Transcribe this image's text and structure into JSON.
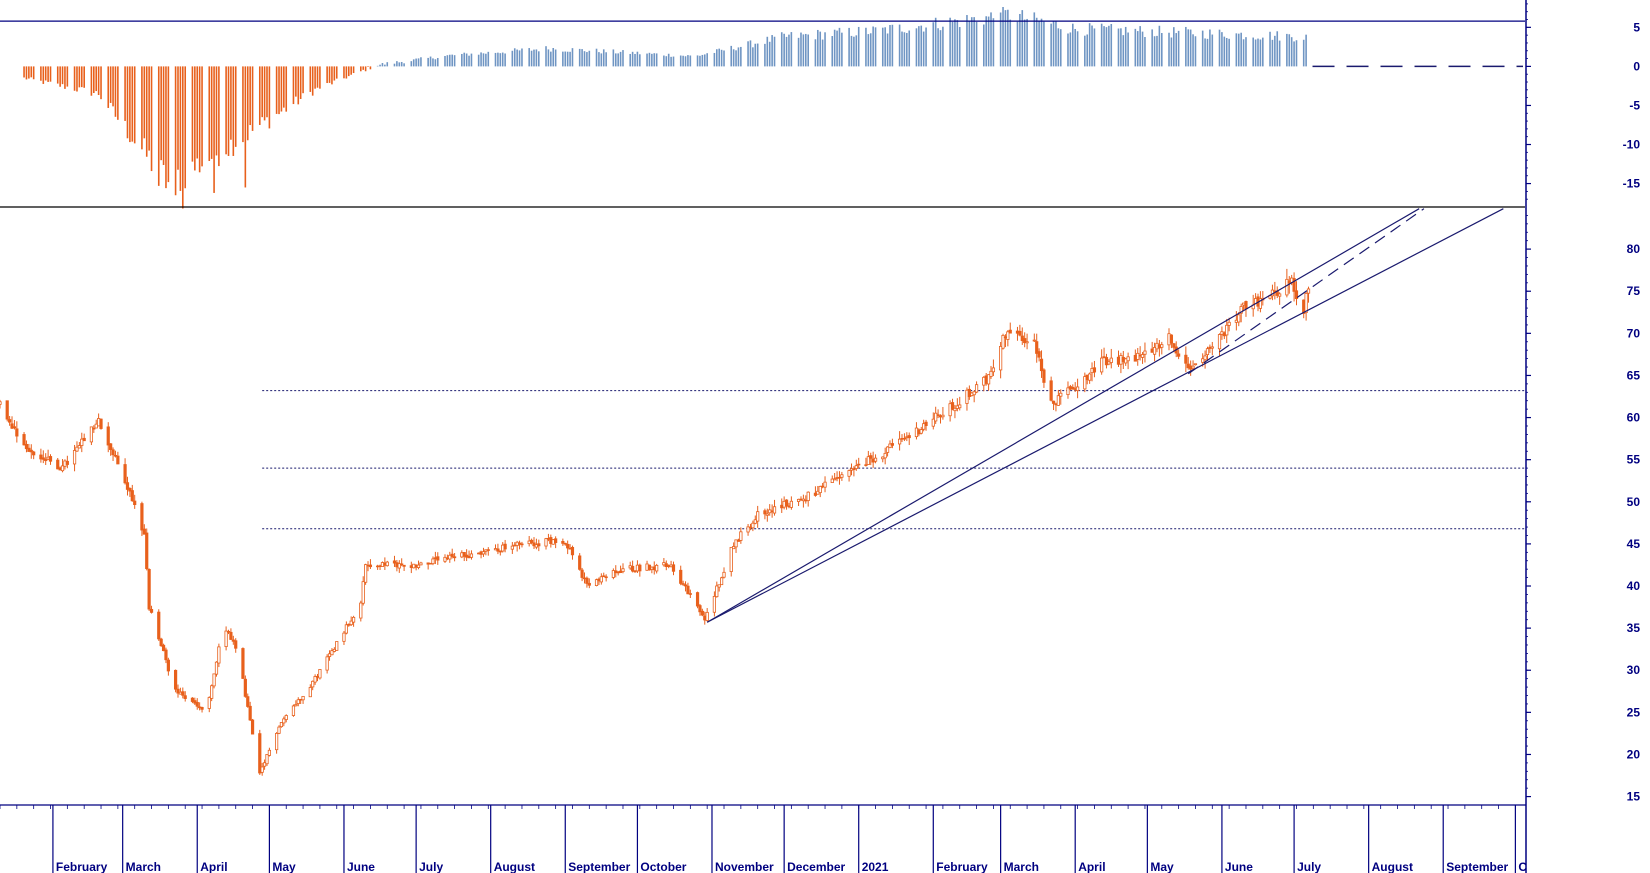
{
  "colors": {
    "price": "#e8601c",
    "osc_positive": "#6f95c3",
    "osc_negative": "#e8601c",
    "axis": "#000080",
    "trendline": "#1a1a6e",
    "background": "#ffffff"
  },
  "chart_data": [
    {
      "type": "bar",
      "panel": "oscillator",
      "title": "",
      "ylabel": "",
      "ylim": [
        -18,
        8.5
      ],
      "yticks": [
        "5",
        "0",
        "-5",
        "-10",
        "-15"
      ],
      "ytick_values": [
        5,
        0,
        -5,
        -10,
        -15
      ],
      "reference_line": 5.8,
      "zero_line_projection": "dashed",
      "segments": [
        {
          "from": "2020-01-20",
          "to": "2020-02-20",
          "start": -1.5,
          "end": -3.5
        },
        {
          "from": "2020-02-20",
          "to": "2020-03-20",
          "start": -3.5,
          "end": -15
        },
        {
          "from": "2020-03-20",
          "to": "2020-04-20",
          "start": -15,
          "end": -9
        },
        {
          "from": "2020-04-20",
          "to": "2020-05-20",
          "start": -9,
          "end": -3
        },
        {
          "from": "2020-05-20",
          "to": "2020-06-15",
          "start": -3,
          "end": 0.2
        },
        {
          "from": "2020-06-15",
          "to": "2020-07-15",
          "start": 0.2,
          "end": 1.4
        },
        {
          "from": "2020-07-15",
          "to": "2020-08-25",
          "start": 1.4,
          "end": 2.3
        },
        {
          "from": "2020-08-25",
          "to": "2020-10-25",
          "start": 2.3,
          "end": 1.3
        },
        {
          "from": "2020-10-25",
          "to": "2020-12-01",
          "start": 1.3,
          "end": 3.8
        },
        {
          "from": "2020-12-01",
          "to": "2021-01-10",
          "start": 3.8,
          "end": 4.6
        },
        {
          "from": "2021-01-10",
          "to": "2021-03-05",
          "start": 4.6,
          "end": 6.6
        },
        {
          "from": "2021-03-05",
          "to": "2021-04-01",
          "start": 6.6,
          "end": 4.8
        },
        {
          "from": "2021-04-01",
          "to": "2021-07-06",
          "start": 4.8,
          "end": 3.8
        }
      ],
      "extremes": [
        {
          "date": "2020-03-16",
          "value": -15.3
        },
        {
          "date": "2020-03-23",
          "value": -16.5
        },
        {
          "date": "2020-03-26",
          "value": -18.2
        },
        {
          "date": "2020-04-08",
          "value": -16.2
        },
        {
          "date": "2020-04-21",
          "value": -15.5
        },
        {
          "date": "2021-03-01",
          "value": 6.9
        }
      ]
    },
    {
      "type": "candlestick",
      "panel": "price",
      "title": "",
      "ylabel": "",
      "ylim": [
        14,
        85
      ],
      "yticks": [
        "80",
        "75",
        "70",
        "65",
        "60",
        "55",
        "50",
        "45",
        "40",
        "35",
        "30",
        "25",
        "20",
        "15"
      ],
      "ytick_values": [
        80,
        75,
        70,
        65,
        60,
        55,
        50,
        45,
        40,
        35,
        30,
        25,
        20,
        15
      ],
      "x_range": [
        "2020-01-10",
        "2021-10-05"
      ],
      "anchors": [
        {
          "date": "2020-01-10",
          "close": 61.5
        },
        {
          "date": "2020-01-22",
          "close": 56.0
        },
        {
          "date": "2020-02-05",
          "close": 54.0
        },
        {
          "date": "2020-02-20",
          "close": 59.5
        },
        {
          "date": "2020-03-05",
          "close": 50.5
        },
        {
          "date": "2020-03-10",
          "close": 46.0
        },
        {
          "date": "2020-03-12",
          "close": 37.5
        },
        {
          "date": "2020-03-23",
          "close": 27.5
        },
        {
          "date": "2020-04-05",
          "close": 25.0
        },
        {
          "date": "2020-04-12",
          "close": 35.5
        },
        {
          "date": "2020-04-18",
          "close": 32.0
        },
        {
          "date": "2020-04-27",
          "close": 17.5
        },
        {
          "date": "2020-05-05",
          "close": 23.5
        },
        {
          "date": "2020-05-20",
          "close": 29.0
        },
        {
          "date": "2020-06-08",
          "close": 38.0
        },
        {
          "date": "2020-06-10",
          "close": 42.5
        },
        {
          "date": "2020-07-01",
          "close": 42.5
        },
        {
          "date": "2020-08-15",
          "close": 45.0
        },
        {
          "date": "2020-09-01",
          "close": 45.5
        },
        {
          "date": "2020-09-10",
          "close": 40.0
        },
        {
          "date": "2020-09-25",
          "close": 42.0
        },
        {
          "date": "2020-10-15",
          "close": 42.5
        },
        {
          "date": "2020-10-29",
          "close": 36.0
        },
        {
          "date": "2020-11-10",
          "close": 45.0
        },
        {
          "date": "2020-11-20",
          "close": 48.5
        },
        {
          "date": "2020-12-10",
          "close": 50.5
        },
        {
          "date": "2021-01-15",
          "close": 56.5
        },
        {
          "date": "2021-02-10",
          "close": 61.5
        },
        {
          "date": "2021-02-25",
          "close": 65.0
        },
        {
          "date": "2021-03-03",
          "close": 70.0
        },
        {
          "date": "2021-03-15",
          "close": 69.0
        },
        {
          "date": "2021-03-22",
          "close": 61.5
        },
        {
          "date": "2021-04-12",
          "close": 66.5
        },
        {
          "date": "2021-04-25",
          "close": 67.0
        },
        {
          "date": "2021-05-10",
          "close": 69.5
        },
        {
          "date": "2021-05-20",
          "close": 65.5
        },
        {
          "date": "2021-06-10",
          "close": 73.0
        },
        {
          "date": "2021-06-30",
          "close": 76.0
        },
        {
          "date": "2021-07-05",
          "close": 73.0
        },
        {
          "date": "2021-07-07",
          "close": 75.5
        }
      ],
      "horizontal_levels": [
        63.2,
        54.0,
        46.8
      ],
      "horizontal_levels_start": "2020-04-28",
      "trendlines": [
        {
          "from": {
            "date": "2020-10-30",
            "value": 35.7
          },
          "to": {
            "date": "2021-08-22",
            "value": 84.8
          },
          "style": "solid"
        },
        {
          "from": {
            "date": "2020-10-30",
            "value": 35.7
          },
          "to": {
            "date": "2021-09-26",
            "value": 84.8
          },
          "style": "solid"
        },
        {
          "from": {
            "date": "2021-05-18",
            "value": 65.2
          },
          "to": {
            "date": "2021-08-24",
            "value": 84.8
          },
          "style": "dashed"
        }
      ]
    }
  ],
  "x_axis": {
    "months": [
      {
        "label": "February",
        "date": "2020-02-01"
      },
      {
        "label": "March",
        "date": "2020-03-01"
      },
      {
        "label": "April",
        "date": "2020-04-01"
      },
      {
        "label": "May",
        "date": "2020-05-01"
      },
      {
        "label": "June",
        "date": "2020-06-01"
      },
      {
        "label": "July",
        "date": "2020-07-01"
      },
      {
        "label": "August",
        "date": "2020-08-01"
      },
      {
        "label": "September",
        "date": "2020-09-01"
      },
      {
        "label": "October",
        "date": "2020-10-01"
      },
      {
        "label": "November",
        "date": "2020-11-01"
      },
      {
        "label": "December",
        "date": "2020-12-01"
      },
      {
        "label": "2021",
        "date": "2021-01-01"
      },
      {
        "label": "February",
        "date": "2021-02-01"
      },
      {
        "label": "March",
        "date": "2021-03-01"
      },
      {
        "label": "April",
        "date": "2021-04-01"
      },
      {
        "label": "May",
        "date": "2021-05-01"
      },
      {
        "label": "June",
        "date": "2021-06-01"
      },
      {
        "label": "July",
        "date": "2021-07-01"
      },
      {
        "label": "August",
        "date": "2021-08-01"
      },
      {
        "label": "September",
        "date": "2021-09-01"
      },
      {
        "label": "C",
        "date": "2021-10-01"
      }
    ]
  }
}
